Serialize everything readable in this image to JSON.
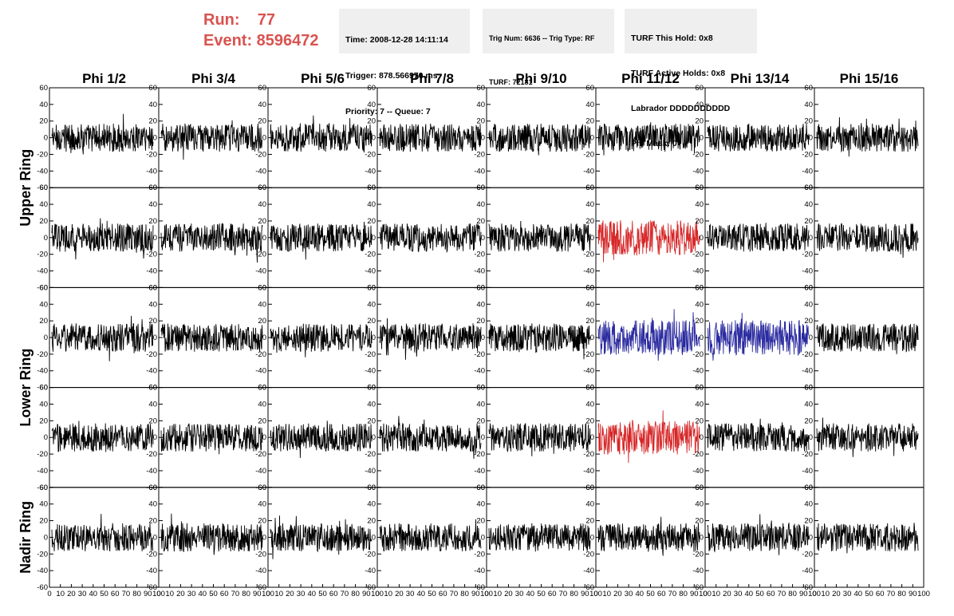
{
  "header": {
    "run_line": "Run:    77",
    "event_line": "Event: 8596472"
  },
  "info_box_1": {
    "time": "Time: 2008-12-28 14:11:14",
    "trigger": "Trigger: 878.566970 ms",
    "priority": "Priority: 7 -- Queue: 7"
  },
  "info_box_2": {
    "trig": "Trig Num: 6636 -- Trig Type: RF",
    "turf": "TURF: 72181"
  },
  "info_box_3": {
    "this_hold": "TURF This Hold: 0x8",
    "active_holds": "TURF Active Holds: 0x8",
    "labrador": "Labrador DDDDDDDDDD",
    "phi_mask": "Phi Mask: 0"
  },
  "chart_data": {
    "type": "line",
    "columns": [
      "Phi 1/2",
      "Phi 3/4",
      "Phi 5/6",
      "Phi 7/8",
      "Phi 9/10",
      "Phi 11/12",
      "Phi 13/14",
      "Phi 15/16"
    ],
    "row_groups": [
      "Upper Ring",
      "Lower Ring",
      "Nadir Ring"
    ],
    "rows": 5,
    "ylim": [
      -60,
      60
    ],
    "yticks": [
      -60,
      -40,
      -20,
      0,
      20,
      40,
      60
    ],
    "xlim": [
      0,
      100
    ],
    "xticks": [
      "0",
      "10",
      "20",
      "30",
      "40",
      "50",
      "60",
      "70",
      "80",
      "90",
      "100"
    ],
    "samples_per_trace": 256,
    "colors": {
      "default": "#000000",
      "highlight_red": "#d62728",
      "highlight_blue": "#2a2aa0"
    },
    "highlighted_panels": [
      {
        "row": 1,
        "col": 5,
        "color": "red"
      },
      {
        "row": 2,
        "col": 5,
        "color": "blue"
      },
      {
        "row": 2,
        "col": 6,
        "color": "blue"
      },
      {
        "row": 3,
        "col": 5,
        "color": "red"
      }
    ],
    "trace_amplitude_approx": 20
  }
}
